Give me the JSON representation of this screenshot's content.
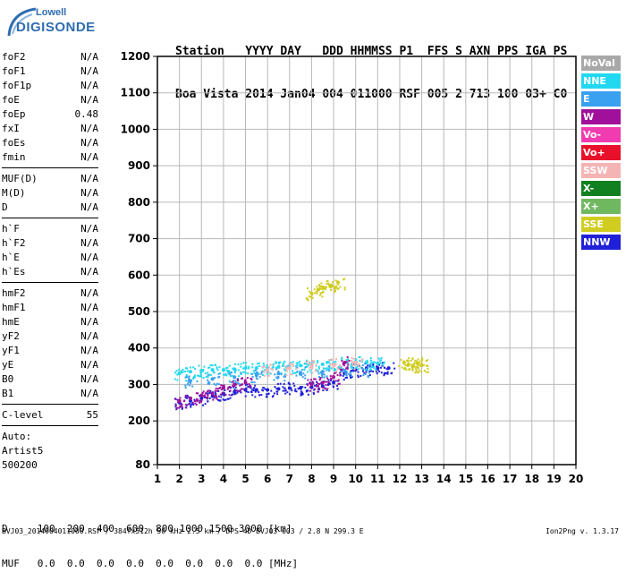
{
  "logo": {
    "top": "Lowell",
    "bottom": "DIGISONDE"
  },
  "header": {
    "line1": "Station   YYYY DAY   DDD HHMMSS P1  FFS S AXN PPS IGA PS",
    "line2": "Boa Vista 2014 Jan04 004 011000 RSF 005 2 713 100 03+ C0"
  },
  "params": {
    "group1": [
      {
        "k": "foF2",
        "v": "N/A"
      },
      {
        "k": "foF1",
        "v": "N/A"
      },
      {
        "k": "foF1p",
        "v": "N/A"
      },
      {
        "k": "foE",
        "v": "N/A"
      },
      {
        "k": "foEp",
        "v": "0.48"
      },
      {
        "k": "fxI",
        "v": "N/A"
      },
      {
        "k": "foEs",
        "v": "N/A"
      },
      {
        "k": "fmin",
        "v": "N/A"
      }
    ],
    "group2": [
      {
        "k": "MUF(D)",
        "v": "N/A"
      },
      {
        "k": "M(D)",
        "v": "N/A"
      },
      {
        "k": "D",
        "v": "N/A"
      }
    ],
    "group3": [
      {
        "k": "h`F",
        "v": "N/A"
      },
      {
        "k": "h`F2",
        "v": "N/A"
      },
      {
        "k": "h`E",
        "v": "N/A"
      },
      {
        "k": "h`Es",
        "v": "N/A"
      }
    ],
    "group4": [
      {
        "k": "hmF2",
        "v": "N/A"
      },
      {
        "k": "hmF1",
        "v": "N/A"
      },
      {
        "k": "hmE",
        "v": "N/A"
      },
      {
        "k": "yF2",
        "v": "N/A"
      },
      {
        "k": "yF1",
        "v": "N/A"
      },
      {
        "k": "yE",
        "v": "N/A"
      },
      {
        "k": "B0",
        "v": "N/A"
      },
      {
        "k": "B1",
        "v": "N/A"
      }
    ],
    "group5": [
      {
        "k": "C-level",
        "v": "55"
      }
    ]
  },
  "auto": {
    "line1": "Auto:",
    "line2": "Artist5",
    "line3": "500200"
  },
  "legend": [
    {
      "label": "NoVal",
      "color": "#a8a8a8"
    },
    {
      "label": "NNE",
      "color": "#22d8f0"
    },
    {
      "label": "E",
      "color": "#3aa0f0"
    },
    {
      "label": "W",
      "color": "#a0109a"
    },
    {
      "label": "Vo-",
      "color": "#f03cb0"
    },
    {
      "label": "Vo+",
      "color": "#e8102a"
    },
    {
      "label": "SSW",
      "color": "#f4b4b4"
    },
    {
      "label": "X-",
      "color": "#108020"
    },
    {
      "label": "X+",
      "color": "#70b860"
    },
    {
      "label": "SSE",
      "color": "#d0cc20"
    },
    {
      "label": "NNW",
      "color": "#2020d8"
    }
  ],
  "bottom": {
    "line1": "D     100  200  400  600  800 1000 1500 3000 [km]",
    "line2": "MUF   0.0  0.0  0.0  0.0  0.0  0.0  0.0  0.0 [MHz]"
  },
  "footer": "BVJ03_2014004011000.RSF / 384fx512h 50 kHz 2.5 km / DPS-4D BVJ03 003 / 2.8 N 299.3 E",
  "version": "Ion2Png v. 1.3.17",
  "chart_data": {
    "type": "scatter",
    "xlim": [
      1,
      20
    ],
    "ylim": [
      80,
      1200
    ],
    "xticks": [
      1,
      2,
      3,
      4,
      5,
      6,
      7,
      8,
      9,
      10,
      11,
      12,
      13,
      14,
      15,
      16,
      17,
      18,
      19,
      20
    ],
    "yticks": [
      80,
      200,
      300,
      400,
      500,
      600,
      700,
      800,
      900,
      1000,
      1100,
      1200
    ],
    "grid": true,
    "legend_position": "right",
    "traces": [
      {
        "name": "NNW",
        "color": "#2020d8",
        "x": [
          2.0,
          2.5,
          3.0,
          3.5,
          4.0,
          4.5,
          5.0,
          5.5,
          6.0,
          6.5,
          7.0,
          7.5,
          8.0,
          8.5,
          9.0,
          9.5,
          10.0,
          10.5,
          11.0,
          11.5
        ],
        "y": [
          250,
          255,
          262,
          268,
          275,
          280,
          285,
          285,
          285,
          288,
          290,
          290,
          292,
          295,
          305,
          330,
          340,
          345,
          345,
          345
        ]
      },
      {
        "name": "NNE",
        "color": "#22d8f0",
        "x": [
          2.0,
          2.5,
          3.0,
          3.5,
          4.0,
          4.5,
          5.0,
          5.5,
          6.0,
          6.5,
          7.0,
          7.5,
          8.0,
          8.5,
          9.0,
          9.5,
          10.0,
          10.5,
          11.0
        ],
        "y": [
          330,
          335,
          338,
          340,
          340,
          342,
          345,
          345,
          345,
          348,
          350,
          352,
          352,
          355,
          358,
          360,
          362,
          360,
          358
        ]
      },
      {
        "name": "E",
        "color": "#3aa0f0",
        "x": [
          2.5,
          3.5,
          4.5,
          5.5,
          6.5,
          7.5,
          8.5,
          9.5,
          10.5
        ],
        "y": [
          310,
          315,
          320,
          325,
          330,
          332,
          335,
          338,
          340
        ]
      },
      {
        "name": "W",
        "color": "#a0109a",
        "x": [
          2.0,
          2.5,
          3.0,
          3.5,
          4.0,
          4.5,
          5.0,
          8.0,
          8.5,
          9.0,
          9.5
        ],
        "y": [
          255,
          262,
          270,
          275,
          290,
          300,
          305,
          300,
          305,
          320,
          360
        ]
      },
      {
        "name": "SSE",
        "color": "#d0cc20",
        "x": [
          8.0,
          8.3,
          8.6,
          8.9,
          9.2,
          12.2,
          12.4,
          12.6,
          12.8,
          13.0
        ],
        "y": [
          550,
          560,
          565,
          572,
          580,
          360,
          355,
          350,
          358,
          352
        ]
      },
      {
        "name": "SSW",
        "color": "#f4b4b4",
        "x": [
          6.0,
          7.0,
          8.0,
          9.0,
          10.0
        ],
        "y": [
          340,
          345,
          350,
          355,
          360
        ]
      }
    ]
  }
}
